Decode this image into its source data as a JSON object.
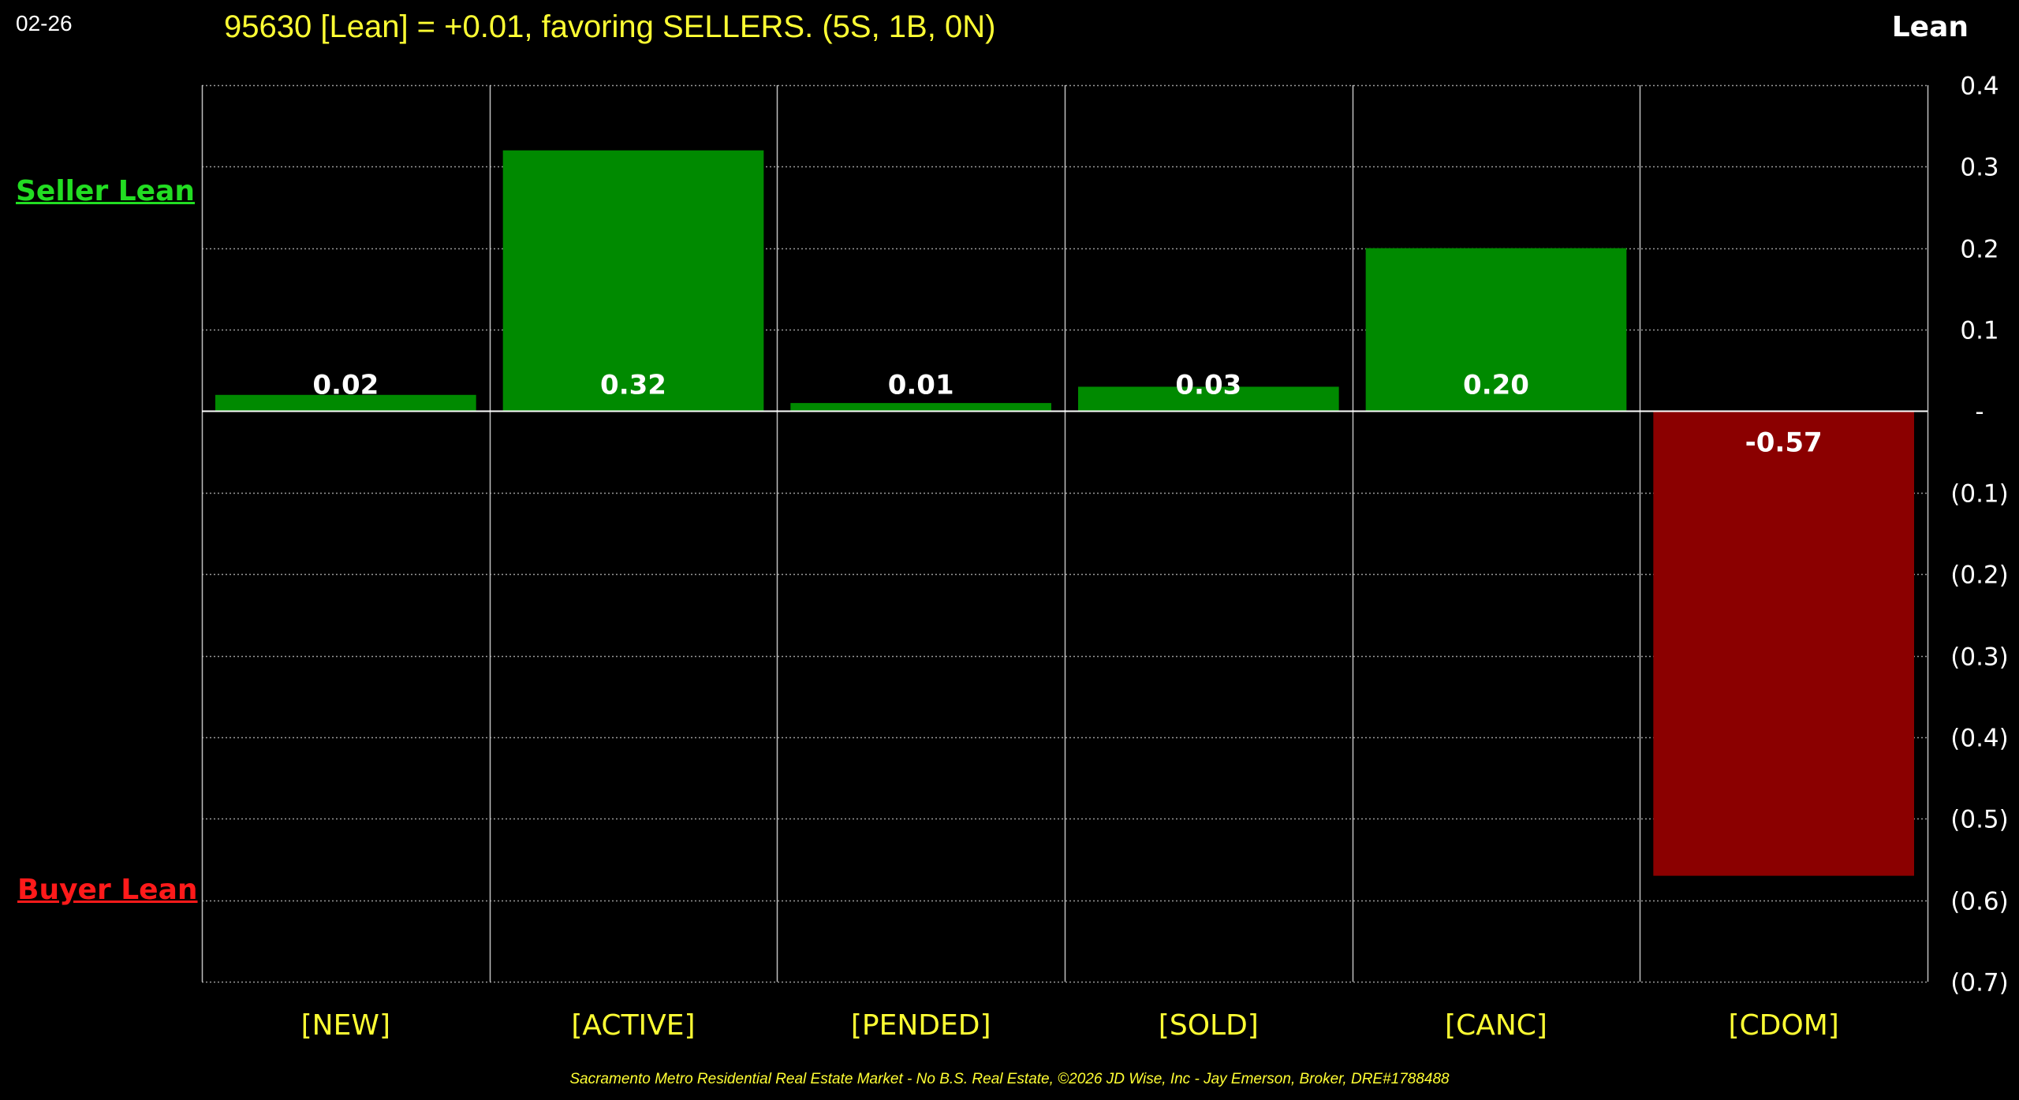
{
  "date_label": "02-26",
  "side_labels": {
    "seller": "Seller Lean",
    "buyer": "Buyer Lean"
  },
  "footer": "Sacramento Metro Residential Real Estate Market - No B.S. Real Estate, ©2026 JD Wise, Inc - Jay Emerson, Broker, DRE#1788488",
  "colors": {
    "background": "#000000",
    "positive_bar": "#008a00",
    "negative_bar": "#8b0000",
    "title": "#ffff33",
    "seller_label": "#22dd22",
    "buyer_label": "#ff1a1a",
    "grid": "#9a9a9a"
  },
  "chart_data": {
    "type": "bar",
    "title": "95630 [Lean] = +0.01, favoring SELLERS. (5S, 1B, 0N)",
    "ylabel": "Lean",
    "xlabel": "",
    "categories": [
      "[NEW]",
      "[ACTIVE]",
      "[PENDED]",
      "[SOLD]",
      "[CANC]",
      "[CDOM]"
    ],
    "values": [
      0.02,
      0.32,
      0.01,
      0.03,
      0.2,
      -0.57
    ],
    "data_labels": [
      "0.02",
      "0.32",
      "0.01",
      "0.03",
      "0.20",
      "-0.57"
    ],
    "ylim": [
      -0.7,
      0.4
    ],
    "yticks": [
      0.4,
      0.3,
      0.2,
      0.1,
      0,
      -0.1,
      -0.2,
      -0.3,
      -0.4,
      -0.5,
      -0.6,
      -0.7
    ],
    "ytick_labels": [
      "0.4",
      "0.3",
      "0.2",
      "0.1",
      "-",
      "(0.1)",
      "(0.2)",
      "(0.3)",
      "(0.4)",
      "(0.5)",
      "(0.6)",
      "(0.7)"
    ],
    "yaxis_side": "right",
    "grid": true
  }
}
